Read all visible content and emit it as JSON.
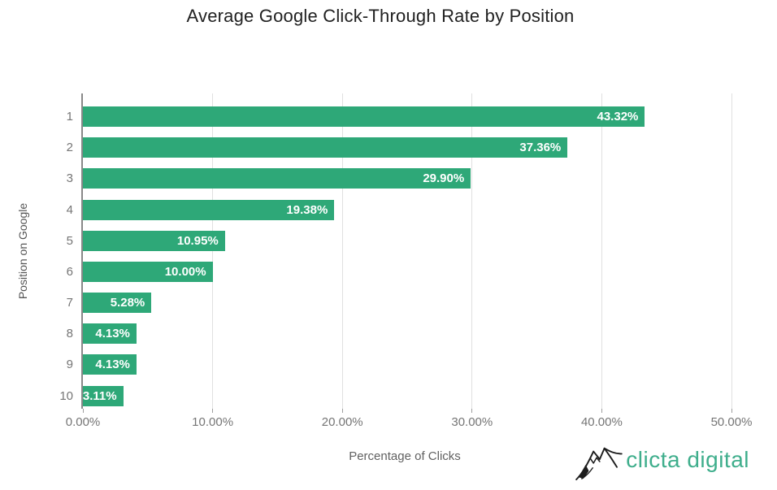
{
  "title": "Average Google Click-Through Rate by Position",
  "chart_data": {
    "type": "bar",
    "orientation": "horizontal",
    "title": "Average Google Click-Through Rate by Position",
    "xlabel": "Percentage of Clicks",
    "ylabel": "Position on Google",
    "categories": [
      "1",
      "2",
      "3",
      "4",
      "5",
      "6",
      "7",
      "8",
      "9",
      "10"
    ],
    "values": [
      43.32,
      37.36,
      29.9,
      19.38,
      10.95,
      10.0,
      5.28,
      4.13,
      4.13,
      3.11
    ],
    "value_labels": [
      "43.32%",
      "37.36%",
      "29.90%",
      "19.38%",
      "10.95%",
      "10.00%",
      "5.28%",
      "4.13%",
      "4.13%",
      "3.11%"
    ],
    "xlim": [
      0,
      50
    ],
    "x_tick_labels": [
      "0.00%",
      "10.00%",
      "20.00%",
      "30.00%",
      "40.00%",
      "50.00%"
    ],
    "grid": true,
    "legend_position": "none",
    "bar_color": "#2EA878",
    "value_label_color": "#FFFFFF",
    "gridline_color": "#E0E0E0",
    "axis_line_color": "#888888",
    "tick_label_color": "#757575"
  },
  "branding": {
    "logo_text": "clicta digital",
    "logo_color": "#3FAE8C",
    "logo_icon": "mountain-sketch-icon"
  }
}
